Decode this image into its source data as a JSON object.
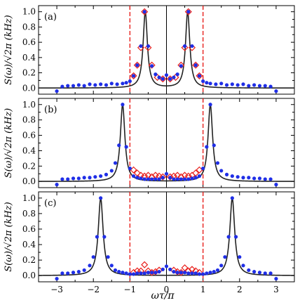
{
  "chart_data": {
    "type": "scatter",
    "xlabel": "ωτ/π",
    "ylabel": "S(ω)/√2π (kHz)",
    "xlim": [
      -3.5,
      3.5
    ],
    "ylim": [
      -0.08,
      1.08
    ],
    "x_ticks": [
      -3,
      -2,
      -1,
      0,
      1,
      2,
      3
    ],
    "y_ticks": [
      0.0,
      0.2,
      0.4,
      0.6,
      0.8,
      1.0
    ],
    "x_tick_labels": [
      "−3",
      "−2",
      "−1",
      "0",
      "1",
      "2",
      "3"
    ],
    "y_tick_labels": [
      "0.0",
      "0.2",
      "0.4",
      "0.6",
      "0.8",
      "1.0"
    ],
    "reference_lines": {
      "dashed_red_x": [
        -1,
        1
      ],
      "solid_black_x": [
        0
      ]
    },
    "colors": {
      "curve": "#222222",
      "circles": "#1f2ee6",
      "diamonds": "#e8201c",
      "dashed": "#e8201c"
    },
    "panels": [
      {
        "tag": "(a)",
        "peak": 0.58,
        "width": 0.07,
        "curve_floor": 0.0,
        "circles": [
          [
            -3.0,
            -0.04
          ],
          [
            -2.85,
            0.02
          ],
          [
            -2.7,
            0.03
          ],
          [
            -2.55,
            0.03
          ],
          [
            -2.4,
            0.04
          ],
          [
            -2.25,
            0.03
          ],
          [
            -2.1,
            0.05
          ],
          [
            -1.95,
            0.04
          ],
          [
            -1.8,
            0.05
          ],
          [
            -1.65,
            0.04
          ],
          [
            -1.5,
            0.06
          ],
          [
            -1.35,
            0.05
          ],
          [
            -1.2,
            0.06
          ],
          [
            -1.1,
            0.07
          ],
          [
            -1.0,
            0.09
          ],
          [
            -0.9,
            0.16
          ],
          [
            -0.8,
            0.3
          ],
          [
            -0.7,
            0.55
          ],
          [
            -0.6,
            1.0
          ],
          [
            -0.5,
            0.55
          ],
          [
            -0.4,
            0.29
          ],
          [
            -0.3,
            0.18
          ],
          [
            -0.2,
            0.14
          ],
          [
            -0.1,
            0.12
          ],
          [
            0.0,
            0.17
          ],
          [
            0.1,
            0.12
          ],
          [
            0.2,
            0.14
          ],
          [
            0.3,
            0.18
          ],
          [
            0.4,
            0.29
          ],
          [
            0.5,
            0.55
          ],
          [
            0.6,
            1.0
          ],
          [
            0.7,
            0.55
          ],
          [
            0.8,
            0.3
          ],
          [
            0.9,
            0.16
          ],
          [
            1.0,
            0.09
          ],
          [
            1.1,
            0.07
          ],
          [
            1.2,
            0.06
          ],
          [
            1.35,
            0.05
          ],
          [
            1.5,
            0.06
          ],
          [
            1.65,
            0.04
          ],
          [
            1.8,
            0.05
          ],
          [
            1.95,
            0.04
          ],
          [
            2.1,
            0.05
          ],
          [
            2.25,
            0.03
          ],
          [
            2.4,
            0.04
          ],
          [
            2.55,
            0.03
          ],
          [
            2.7,
            0.03
          ],
          [
            2.85,
            0.02
          ],
          [
            3.0,
            -0.04
          ]
        ],
        "diamonds": [
          [
            -0.9,
            0.16
          ],
          [
            -0.8,
            0.3
          ],
          [
            -0.7,
            0.53
          ],
          [
            -0.6,
            1.0
          ],
          [
            -0.5,
            0.53
          ],
          [
            -0.4,
            0.3
          ],
          [
            -0.25,
            0.14
          ],
          [
            -0.1,
            0.12
          ],
          [
            0.1,
            0.12
          ],
          [
            0.25,
            0.14
          ],
          [
            0.4,
            0.3
          ],
          [
            0.5,
            0.53
          ],
          [
            0.6,
            1.0
          ],
          [
            0.7,
            0.53
          ],
          [
            0.8,
            0.3
          ],
          [
            0.9,
            0.16
          ]
        ]
      },
      {
        "tag": "(b)",
        "peak": 1.2,
        "width": 0.075,
        "curve_floor": 0.0,
        "circles": [
          [
            -3.0,
            -0.04
          ],
          [
            -2.85,
            0.03
          ],
          [
            -2.7,
            0.03
          ],
          [
            -2.55,
            0.04
          ],
          [
            -2.4,
            0.04
          ],
          [
            -2.25,
            0.05
          ],
          [
            -2.1,
            0.05
          ],
          [
            -1.95,
            0.06
          ],
          [
            -1.8,
            0.07
          ],
          [
            -1.65,
            0.09
          ],
          [
            -1.5,
            0.14
          ],
          [
            -1.4,
            0.24
          ],
          [
            -1.3,
            0.47
          ],
          [
            -1.2,
            1.0
          ],
          [
            -1.1,
            0.45
          ],
          [
            -1.0,
            0.17
          ],
          [
            -0.9,
            0.07
          ],
          [
            -0.8,
            0.05
          ],
          [
            -0.7,
            0.04
          ],
          [
            -0.6,
            0.03
          ],
          [
            -0.5,
            0.03
          ],
          [
            -0.4,
            0.03
          ],
          [
            -0.3,
            0.03
          ],
          [
            -0.2,
            0.03
          ],
          [
            -0.1,
            0.05
          ],
          [
            0.0,
            0.1
          ],
          [
            0.1,
            0.05
          ],
          [
            0.2,
            0.03
          ],
          [
            0.3,
            0.03
          ],
          [
            0.4,
            0.03
          ],
          [
            0.5,
            0.03
          ],
          [
            0.6,
            0.03
          ],
          [
            0.7,
            0.04
          ],
          [
            0.8,
            0.05
          ],
          [
            0.9,
            0.07
          ],
          [
            1.0,
            0.17
          ],
          [
            1.1,
            0.45
          ],
          [
            1.2,
            1.0
          ],
          [
            1.3,
            0.47
          ],
          [
            1.4,
            0.24
          ],
          [
            1.5,
            0.14
          ],
          [
            1.65,
            0.09
          ],
          [
            1.8,
            0.07
          ],
          [
            1.95,
            0.06
          ],
          [
            2.1,
            0.05
          ],
          [
            2.25,
            0.05
          ],
          [
            2.4,
            0.04
          ],
          [
            2.55,
            0.04
          ],
          [
            2.7,
            0.03
          ],
          [
            2.85,
            0.03
          ],
          [
            3.0,
            -0.04
          ]
        ],
        "diamonds": [
          [
            -0.9,
            0.15
          ],
          [
            -0.8,
            0.11
          ],
          [
            -0.7,
            0.08
          ],
          [
            -0.6,
            0.07
          ],
          [
            -0.5,
            0.08
          ],
          [
            -0.4,
            0.06
          ],
          [
            -0.3,
            0.08
          ],
          [
            -0.2,
            0.07
          ],
          [
            -0.1,
            0.06
          ],
          [
            0.1,
            0.06
          ],
          [
            0.2,
            0.07
          ],
          [
            0.3,
            0.08
          ],
          [
            0.4,
            0.06
          ],
          [
            0.5,
            0.08
          ],
          [
            0.6,
            0.07
          ],
          [
            0.7,
            0.08
          ],
          [
            0.8,
            0.11
          ],
          [
            0.9,
            0.15
          ]
        ]
      },
      {
        "tag": "(c)",
        "peak": 1.8,
        "width": 0.08,
        "curve_floor": 0.0,
        "circles": [
          [
            -3.0,
            -0.04
          ],
          [
            -2.85,
            0.03
          ],
          [
            -2.7,
            0.03
          ],
          [
            -2.55,
            0.04
          ],
          [
            -2.4,
            0.05
          ],
          [
            -2.25,
            0.07
          ],
          [
            -2.1,
            0.13
          ],
          [
            -2.0,
            0.24
          ],
          [
            -1.9,
            0.5
          ],
          [
            -1.8,
            1.0
          ],
          [
            -1.7,
            0.5
          ],
          [
            -1.6,
            0.24
          ],
          [
            -1.5,
            0.13
          ],
          [
            -1.4,
            0.07
          ],
          [
            -1.3,
            0.05
          ],
          [
            -1.2,
            0.04
          ],
          [
            -1.1,
            0.03
          ],
          [
            -1.0,
            0.02
          ],
          [
            -0.9,
            0.02
          ],
          [
            -0.8,
            0.03
          ],
          [
            -0.7,
            0.03
          ],
          [
            -0.6,
            0.03
          ],
          [
            -0.5,
            0.04
          ],
          [
            -0.4,
            0.04
          ],
          [
            -0.3,
            0.04
          ],
          [
            -0.2,
            0.05
          ],
          [
            -0.1,
            0.08
          ],
          [
            0.0,
            0.12
          ],
          [
            0.1,
            0.08
          ],
          [
            0.2,
            0.05
          ],
          [
            0.3,
            0.04
          ],
          [
            0.4,
            0.04
          ],
          [
            0.5,
            0.04
          ],
          [
            0.6,
            0.03
          ],
          [
            0.7,
            0.03
          ],
          [
            0.8,
            0.03
          ],
          [
            0.9,
            0.02
          ],
          [
            1.0,
            0.02
          ],
          [
            1.1,
            0.03
          ],
          [
            1.2,
            0.04
          ],
          [
            1.3,
            0.05
          ],
          [
            1.4,
            0.07
          ],
          [
            1.5,
            0.13
          ],
          [
            1.6,
            0.24
          ],
          [
            1.7,
            0.5
          ],
          [
            1.8,
            1.0
          ],
          [
            1.9,
            0.5
          ],
          [
            2.0,
            0.24
          ],
          [
            2.1,
            0.13
          ],
          [
            2.25,
            0.07
          ],
          [
            2.4,
            0.05
          ],
          [
            2.55,
            0.04
          ],
          [
            2.7,
            0.03
          ],
          [
            2.85,
            0.03
          ],
          [
            3.0,
            -0.04
          ]
        ],
        "diamonds": [
          [
            -0.9,
            0.04
          ],
          [
            -0.8,
            0.06
          ],
          [
            -0.7,
            0.06
          ],
          [
            -0.6,
            0.14
          ],
          [
            -0.5,
            0.06
          ],
          [
            -0.4,
            0.04
          ],
          [
            -0.3,
            0.05
          ],
          [
            -0.2,
            0.07
          ],
          [
            0.2,
            0.07
          ],
          [
            0.3,
            0.05
          ],
          [
            0.4,
            0.04
          ],
          [
            0.5,
            0.1
          ],
          [
            0.6,
            0.06
          ],
          [
            0.7,
            0.08
          ],
          [
            0.8,
            0.06
          ],
          [
            0.9,
            0.04
          ]
        ]
      }
    ]
  }
}
